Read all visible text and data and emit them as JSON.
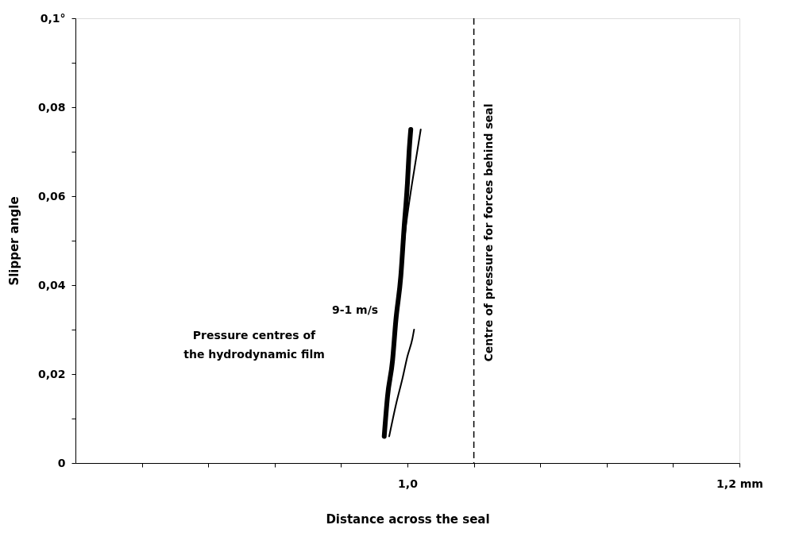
{
  "chart_data": {
    "type": "line",
    "xlabel": "Distance across the seal",
    "ylabel": "Slipper angle",
    "xlim": [
      0.8,
      1.2
    ],
    "ylim": [
      0,
      0.1
    ],
    "xticks": [
      {
        "value": 0.84,
        "label": null
      },
      {
        "value": 0.88,
        "label": null
      },
      {
        "value": 0.92,
        "label": null
      },
      {
        "value": 0.96,
        "label": null
      },
      {
        "value": 1.0,
        "label": "1,0"
      },
      {
        "value": 1.04,
        "label": null
      },
      {
        "value": 1.08,
        "label": null
      },
      {
        "value": 1.12,
        "label": null
      },
      {
        "value": 1.16,
        "label": null
      },
      {
        "value": 1.2,
        "label": "1,2 mm"
      }
    ],
    "yticks": [
      0,
      {
        "value": 0.01,
        "label": null
      },
      {
        "value": 0.02,
        "label": "0,02"
      },
      {
        "value": 0.03,
        "label": null
      },
      {
        "value": 0.04,
        "label": "0,04"
      },
      {
        "value": 0.05,
        "label": null
      },
      {
        "value": 0.06,
        "label": "0,06"
      },
      {
        "value": 0.07,
        "label": null
      },
      {
        "value": 0.08,
        "label": "0,08"
      },
      {
        "value": 0.09,
        "label": null
      },
      {
        "value": 0.1,
        "label": "0,1°"
      }
    ],
    "grid": false,
    "marker": "none",
    "line_style": "solid",
    "series": [
      {
        "color": "#000000",
        "x": [
          0.986,
          0.988,
          0.991,
          0.993,
          0.996,
          0.998,
          1.0,
          1.001,
          1.002
        ],
        "values": [
          0.006,
          0.015,
          0.023,
          0.032,
          0.042,
          0.053,
          0.063,
          0.07,
          0.075
        ]
      },
      {
        "color": "#000000",
        "x": [
          0.996,
          0.999,
          1.002,
          1.005,
          1.008
        ],
        "values": [
          0.042,
          0.053,
          0.061,
          0.068,
          0.075
        ]
      },
      {
        "color": "#000000",
        "x": [
          0.989,
          0.993,
          0.997,
          1.0,
          1.003,
          1.004
        ],
        "values": [
          0.006,
          0.013,
          0.019,
          0.024,
          0.028,
          0.03
        ]
      }
    ],
    "ref_lines": [
      {
        "axis": "x",
        "value": 1.04,
        "label": "Centre of pressure for forces behind seal",
        "color": "#000000",
        "line_style": "dashed"
      }
    ],
    "annotations": [
      "Pressure centres of\nthe hydrodynamic film",
      "9-1 m/s"
    ]
  }
}
